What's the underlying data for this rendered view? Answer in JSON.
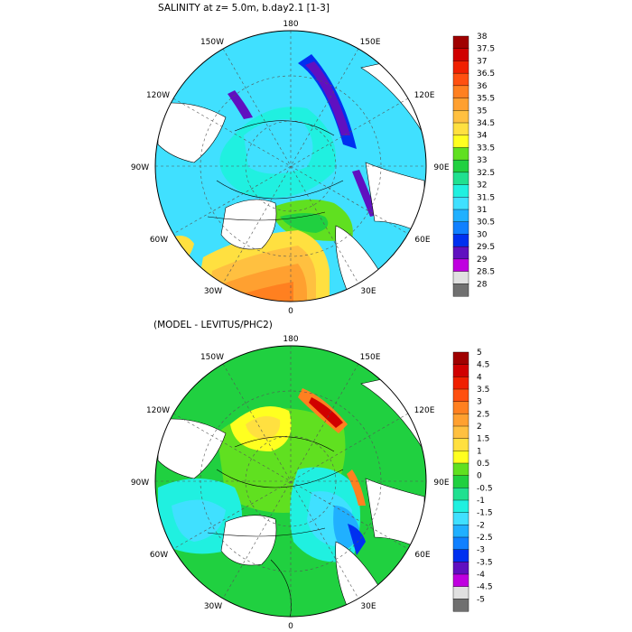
{
  "panels": [
    {
      "title": "SALINITY at z=   5.0m, b.day2.1 [1-3]",
      "lon_labels": {
        "n": "180",
        "nw": "150W",
        "ne": "150E",
        "wnw": "120W",
        "ene": "120E",
        "w": "90W",
        "e": "90E",
        "wsw": "60W",
        "ese": "60E",
        "sw": "30W",
        "se": "30E",
        "s": "0"
      },
      "colorbar": {
        "labels": [
          "38",
          "37.5",
          "37",
          "36.5",
          "36",
          "35.5",
          "35",
          "34.5",
          "34",
          "33.5",
          "33",
          "32.5",
          "32",
          "31.5",
          "31",
          "30.5",
          "30",
          "29.5",
          "29",
          "28.5",
          "28"
        ],
        "colors": [
          "#a00000",
          "#d00000",
          "#f02000",
          "#ff5010",
          "#ff8020",
          "#ffa030",
          "#ffc040",
          "#ffe040",
          "#ffff20",
          "#60e020",
          "#20d040",
          "#20e090",
          "#20f0e0",
          "#40e0ff",
          "#20b0ff",
          "#1080ff",
          "#0030f0",
          "#6010c0",
          "#c000e0",
          "#e0e0e0",
          "#707070"
        ]
      }
    },
    {
      "title": "(MODEL - LEVITUS/PHC2)",
      "lon_labels": {
        "n": "180",
        "nw": "150W",
        "ne": "150E",
        "wnw": "120W",
        "ene": "120E",
        "w": "90W",
        "e": "90E",
        "wsw": "60W",
        "ese": "60E",
        "sw": "30W",
        "se": "30E",
        "s": "0"
      },
      "colorbar": {
        "labels": [
          "5",
          "4.5",
          "4",
          "3.5",
          "3",
          "2.5",
          "2",
          "1.5",
          "1",
          "0.5",
          "0",
          "-0.5",
          "-1",
          "-1.5",
          "-2",
          "-2.5",
          "-3",
          "-3.5",
          "-4",
          "-4.5",
          "-5"
        ],
        "colors": [
          "#a00000",
          "#d00000",
          "#f02000",
          "#ff5010",
          "#ff8020",
          "#ffa030",
          "#ffc040",
          "#ffe040",
          "#ffff20",
          "#60e020",
          "#20d040",
          "#20e090",
          "#20f0e0",
          "#40e0ff",
          "#20b0ff",
          "#1080ff",
          "#0030f0",
          "#6010c0",
          "#c000e0",
          "#e0e0e0",
          "#707070"
        ]
      }
    }
  ]
}
